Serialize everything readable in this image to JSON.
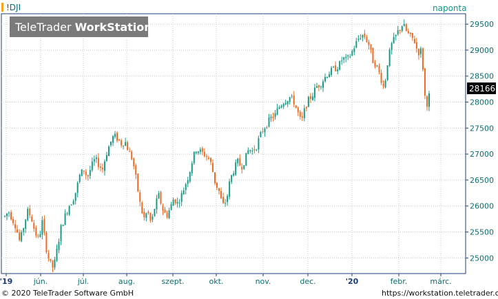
{
  "header": {
    "symbol": "!DJI",
    "frequency": "naponta",
    "watermark_brand": "TeleTrader",
    "watermark_product": "WorkStation"
  },
  "footer": {
    "copyright": "© 2020 TeleTrader Software GmbH",
    "url": "https://workstation.teletrader.com"
  },
  "colors": {
    "up": "#1a9a86",
    "down": "#ee6a22",
    "axis": "#1a3c7a",
    "grid": "#c8c8c8",
    "accent": "#f5a31a"
  },
  "chart_data": {
    "type": "candlestick",
    "last_value_label": "28166",
    "ylim": [
      24700,
      29700
    ],
    "yticks": [
      25000,
      25500,
      26000,
      26500,
      27000,
      27500,
      28000,
      28500,
      29000,
      29500
    ],
    "ytick_labels": [
      "25000",
      "25500",
      "26000",
      "26500",
      "27000",
      "27500",
      "28000",
      "28500",
      "29000",
      "29500"
    ],
    "xtick_labels": [
      "'19",
      "jún.",
      "júl.",
      "aug.",
      "szept.",
      "okt.",
      "nov.",
      "dec.",
      "'20",
      "febr.",
      "márc."
    ],
    "trend_closes": [
      25800,
      25900,
      25750,
      25600,
      25300,
      25600,
      25900,
      25800,
      25500,
      25350,
      25700,
      25200,
      24900,
      24800,
      25200,
      25600,
      25800,
      26000,
      26100,
      26300,
      26600,
      26700,
      26550,
      26750,
      26900,
      26800,
      26700,
      27000,
      27200,
      27350,
      27300,
      27200,
      27250,
      27050,
      26900,
      26500,
      26050,
      25750,
      25900,
      25650,
      26000,
      26200,
      25950,
      25800,
      25950,
      26150,
      26050,
      26200,
      26400,
      26600,
      26900,
      27100,
      27050,
      27000,
      26950,
      26800,
      26450,
      26300,
      26000,
      26100,
      26500,
      26700,
      26850,
      26750,
      26900,
      27100,
      27050,
      27150,
      27350,
      27500,
      27600,
      27700,
      27750,
      27900,
      28000,
      28050,
      28100,
      28000,
      27800,
      27600,
      27900,
      28050,
      28150,
      28300,
      28350,
      28450,
      28550,
      28600,
      28650,
      28700,
      28850,
      28800,
      28900,
      29050,
      29200,
      29300,
      29250,
      29100,
      28800,
      28700,
      28500,
      28250,
      28800,
      29100,
      29250,
      29400,
      29500,
      29350,
      29250,
      29200,
      28950,
      29000,
      28000,
      27950
    ]
  }
}
